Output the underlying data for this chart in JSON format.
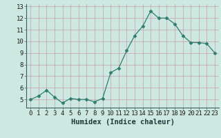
{
  "x": [
    0,
    1,
    2,
    3,
    4,
    5,
    6,
    7,
    8,
    9,
    10,
    11,
    12,
    13,
    14,
    15,
    16,
    17,
    18,
    19,
    20,
    21,
    22,
    23
  ],
  "y": [
    5.0,
    5.3,
    5.8,
    5.2,
    4.7,
    5.1,
    5.0,
    5.0,
    4.8,
    5.1,
    7.3,
    7.7,
    9.2,
    10.5,
    11.3,
    12.6,
    12.0,
    12.0,
    11.5,
    10.5,
    9.9,
    9.9,
    9.8,
    9.0
  ],
  "line_color": "#2e7d6e",
  "marker": "D",
  "marker_size": 2.5,
  "bg_color": "#cce8e0",
  "grid_color": "#c8a0a8",
  "xlabel": "Humidex (Indice chaleur)",
  "xlim": [
    -0.5,
    23.5
  ],
  "ylim": [
    4.3,
    13.2
  ],
  "yticks": [
    5,
    6,
    7,
    8,
    9,
    10,
    11,
    12,
    13
  ],
  "xticks": [
    0,
    1,
    2,
    3,
    4,
    5,
    6,
    7,
    8,
    9,
    10,
    11,
    12,
    13,
    14,
    15,
    16,
    17,
    18,
    19,
    20,
    21,
    22,
    23
  ],
  "tick_fontsize": 6.5,
  "xlabel_fontsize": 7.5
}
